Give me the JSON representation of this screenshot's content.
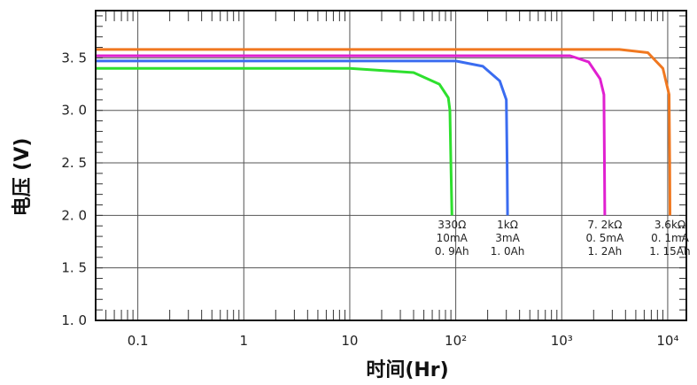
{
  "chart_data": {
    "type": "line",
    "title": "",
    "xlabel": "时间(Hr)",
    "ylabel": "电压 (V)",
    "xscale": "log",
    "xlim": [
      0.04,
      15000
    ],
    "ylim": [
      1.0,
      3.95
    ],
    "grid": true,
    "x_tick_labels": [
      {
        "value": 0.1,
        "label": "0.1"
      },
      {
        "value": 1,
        "label": "1"
      },
      {
        "value": 10,
        "label": "10"
      },
      {
        "value": 100,
        "label": "10²"
      },
      {
        "value": 1000,
        "label": "10³"
      },
      {
        "value": 10000,
        "label": "10⁴"
      }
    ],
    "y_tick_labels": [
      {
        "value": 1.0,
        "label": "1. 0"
      },
      {
        "value": 1.5,
        "label": "1. 5"
      },
      {
        "value": 2.0,
        "label": "2. 0"
      },
      {
        "value": 2.5,
        "label": "2. 5"
      },
      {
        "value": 3.0,
        "label": "3. 0"
      },
      {
        "value": 3.5,
        "label": "3. 5"
      }
    ],
    "series": [
      {
        "color": "#2ee02e",
        "points": [
          [
            0.04,
            3.4
          ],
          [
            10,
            3.4
          ],
          [
            40,
            3.36
          ],
          [
            70,
            3.25
          ],
          [
            85,
            3.12
          ],
          [
            88,
            3.0
          ],
          [
            90,
            2.5
          ],
          [
            92,
            2.0
          ]
        ],
        "annotation": [
          "330Ω",
          "10mA",
          "0. 9Ah"
        ]
      },
      {
        "color": "#3a6cf0",
        "points": [
          [
            0.04,
            3.47
          ],
          [
            100,
            3.47
          ],
          [
            180,
            3.42
          ],
          [
            260,
            3.28
          ],
          [
            300,
            3.1
          ],
          [
            305,
            2.5
          ],
          [
            308,
            2.0
          ]
        ],
        "annotation": [
          "1kΩ",
          "3mA",
          "1. 0Ah"
        ]
      },
      {
        "color": "#e020d0",
        "points": [
          [
            0.04,
            3.52
          ],
          [
            1200,
            3.52
          ],
          [
            1800,
            3.46
          ],
          [
            2300,
            3.3
          ],
          [
            2500,
            3.15
          ],
          [
            2530,
            2.5
          ],
          [
            2550,
            2.0
          ]
        ],
        "annotation": [
          "7. 2kΩ",
          "0. 5mA",
          "1. 2Ah"
        ]
      },
      {
        "color": "#f07820",
        "points": [
          [
            0.04,
            3.58
          ],
          [
            3500,
            3.58
          ],
          [
            6500,
            3.55
          ],
          [
            9000,
            3.4
          ],
          [
            10300,
            3.15
          ],
          [
            10450,
            2.5
          ],
          [
            10500,
            2.0
          ]
        ],
        "annotation": [
          "3.6kΩ",
          "0. 1mA",
          "1. 15Ah"
        ]
      }
    ]
  }
}
